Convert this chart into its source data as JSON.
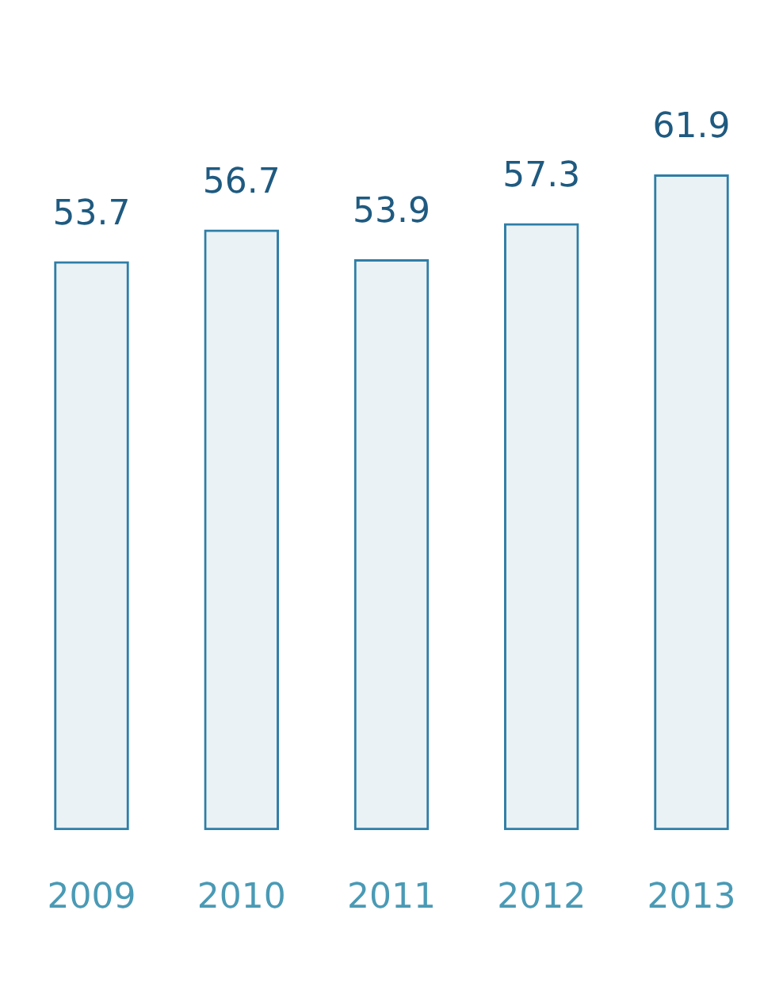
{
  "chart_data": {
    "type": "bar",
    "categories": [
      "2009",
      "2010",
      "2011",
      "2012",
      "2013"
    ],
    "values": [
      53.7,
      56.7,
      53.9,
      57.3,
      61.9
    ],
    "color": "#2f7ea6",
    "data_labels": true,
    "grid": false,
    "legend": false
  }
}
